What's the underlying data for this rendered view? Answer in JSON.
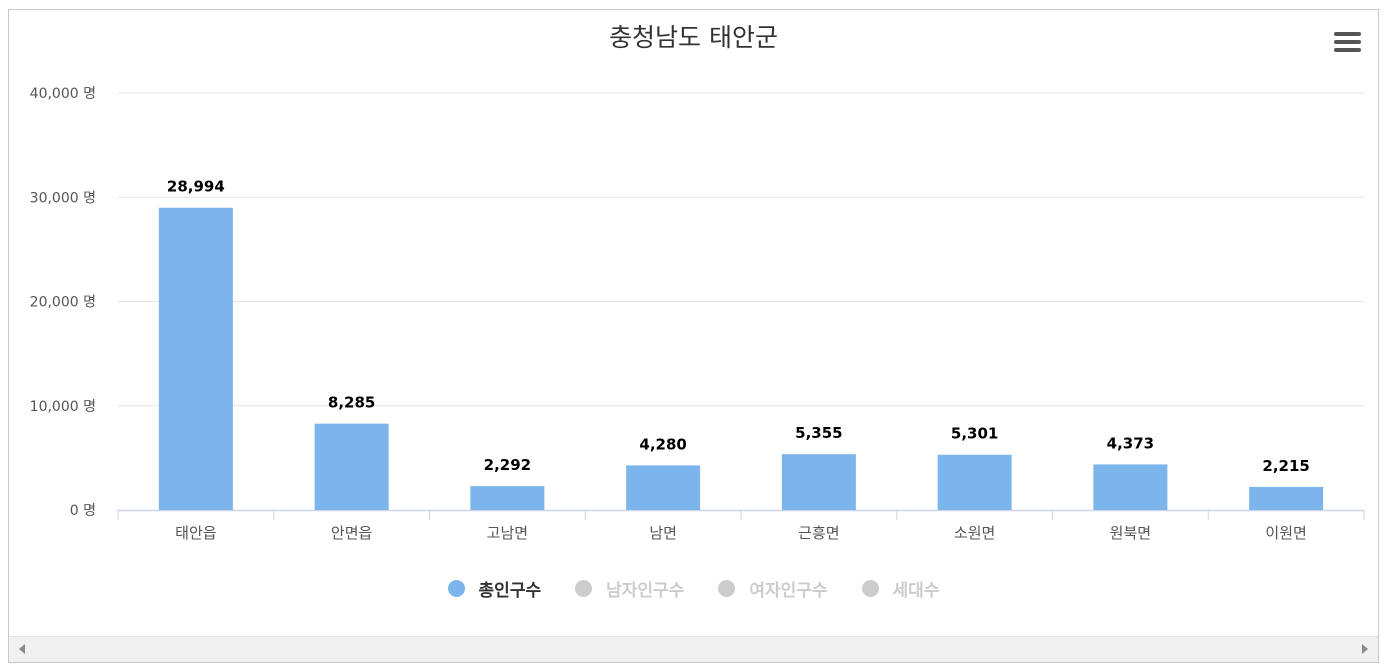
{
  "chart_data": {
    "type": "bar",
    "title": "충청남도 태안군",
    "categories": [
      "태안읍",
      "안면읍",
      "고남면",
      "남면",
      "근흥면",
      "소원면",
      "원북면",
      "이원면"
    ],
    "series": [
      {
        "name": "총인구수",
        "values": [
          28994,
          8285,
          2292,
          4280,
          5355,
          5301,
          4373,
          2215
        ],
        "visible": true,
        "color": "#7cb5ec"
      },
      {
        "name": "남자인구수",
        "visible": false,
        "color": "#cccccc"
      },
      {
        "name": "여자인구수",
        "visible": false,
        "color": "#cccccc"
      },
      {
        "name": "세대수",
        "visible": false,
        "color": "#cccccc"
      }
    ],
    "data_labels": [
      "28,994",
      "8,285",
      "2,292",
      "4,280",
      "5,355",
      "5,301",
      "4,373",
      "2,215"
    ],
    "yticks": [
      0,
      10000,
      20000,
      30000,
      40000
    ],
    "ytick_labels": [
      "0 명",
      "10,000 명",
      "20,000 명",
      "30,000 명",
      "40,000 명"
    ],
    "ylim": [
      0,
      40000
    ],
    "grid": true,
    "legend": "bottom-center"
  },
  "colors": {
    "bar": "#7cb5ec",
    "grid": "#e6e6e6",
    "axis": "#ccd6eb",
    "text": "#333333"
  },
  "icons": {
    "menu": "hamburger-menu-icon",
    "scroll_left": "arrow-left-icon",
    "scroll_right": "arrow-right-icon"
  }
}
